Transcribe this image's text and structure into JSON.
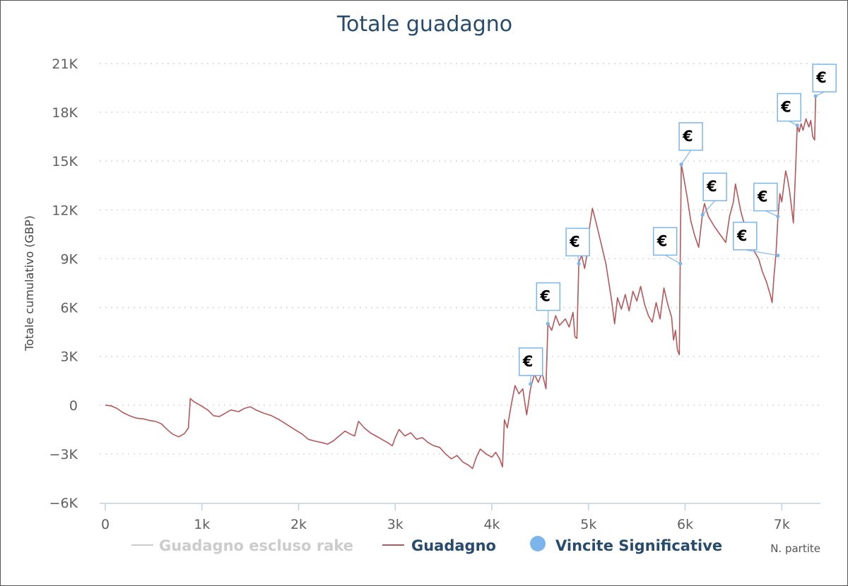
{
  "chart_data": {
    "type": "line",
    "title": "Totale guadagno",
    "xlabel": "N. partite",
    "ylabel": "Totale cumulativo (GBP)",
    "xlim": [
      0,
      7400
    ],
    "ylim": [
      -6000,
      21000
    ],
    "x_ticks": [
      {
        "value": 0,
        "label": "0"
      },
      {
        "value": 1000,
        "label": "1k"
      },
      {
        "value": 2000,
        "label": "2k"
      },
      {
        "value": 3000,
        "label": "3k"
      },
      {
        "value": 4000,
        "label": "4k"
      },
      {
        "value": 5000,
        "label": "5k"
      },
      {
        "value": 6000,
        "label": "6k"
      },
      {
        "value": 7000,
        "label": "7k"
      }
    ],
    "y_ticks": [
      {
        "value": -6000,
        "label": "−6K"
      },
      {
        "value": -3000,
        "label": "−3K"
      },
      {
        "value": 0,
        "label": "0"
      },
      {
        "value": 3000,
        "label": "3K"
      },
      {
        "value": 6000,
        "label": "6K"
      },
      {
        "value": 9000,
        "label": "9K"
      },
      {
        "value": 12000,
        "label": "12K"
      },
      {
        "value": 15000,
        "label": "15K"
      },
      {
        "value": 18000,
        "label": "18K"
      },
      {
        "value": 21000,
        "label": "21K"
      }
    ],
    "grid": {
      "horizontal": true,
      "style": "dotted"
    },
    "legend_position": "bottom",
    "series": [
      {
        "name": "Guadagno escluso rake",
        "color": "#cccccc",
        "hidden": true,
        "points": []
      },
      {
        "name": "Guadagno",
        "color": "#b5585b",
        "points": [
          [
            0,
            0
          ],
          [
            60,
            -50
          ],
          [
            120,
            -200
          ],
          [
            180,
            -450
          ],
          [
            250,
            -650
          ],
          [
            320,
            -800
          ],
          [
            400,
            -850
          ],
          [
            460,
            -950
          ],
          [
            520,
            -1000
          ],
          [
            580,
            -1150
          ],
          [
            640,
            -1500
          ],
          [
            700,
            -1800
          ],
          [
            760,
            -1950
          ],
          [
            820,
            -1750
          ],
          [
            860,
            -1400
          ],
          [
            880,
            400
          ],
          [
            920,
            200
          ],
          [
            980,
            0
          ],
          [
            1060,
            -300
          ],
          [
            1120,
            -650
          ],
          [
            1180,
            -700
          ],
          [
            1240,
            -500
          ],
          [
            1300,
            -300
          ],
          [
            1380,
            -400
          ],
          [
            1440,
            -200
          ],
          [
            1500,
            -100
          ],
          [
            1560,
            -300
          ],
          [
            1640,
            -500
          ],
          [
            1720,
            -650
          ],
          [
            1800,
            -900
          ],
          [
            1880,
            -1200
          ],
          [
            1960,
            -1500
          ],
          [
            2040,
            -1800
          ],
          [
            2100,
            -2100
          ],
          [
            2160,
            -2200
          ],
          [
            2240,
            -2300
          ],
          [
            2300,
            -2400
          ],
          [
            2360,
            -2200
          ],
          [
            2420,
            -1900
          ],
          [
            2480,
            -1600
          ],
          [
            2540,
            -1800
          ],
          [
            2580,
            -1900
          ],
          [
            2620,
            -1000
          ],
          [
            2680,
            -1400
          ],
          [
            2740,
            -1700
          ],
          [
            2800,
            -1900
          ],
          [
            2860,
            -2100
          ],
          [
            2920,
            -2300
          ],
          [
            2970,
            -2500
          ],
          [
            3000,
            -2000
          ],
          [
            3040,
            -1500
          ],
          [
            3100,
            -1900
          ],
          [
            3160,
            -1700
          ],
          [
            3220,
            -2100
          ],
          [
            3280,
            -2000
          ],
          [
            3340,
            -2300
          ],
          [
            3400,
            -2500
          ],
          [
            3460,
            -2600
          ],
          [
            3520,
            -3000
          ],
          [
            3580,
            -3300
          ],
          [
            3640,
            -3100
          ],
          [
            3700,
            -3500
          ],
          [
            3760,
            -3700
          ],
          [
            3800,
            -3900
          ],
          [
            3840,
            -3200
          ],
          [
            3880,
            -2700
          ],
          [
            3940,
            -3000
          ],
          [
            4000,
            -3200
          ],
          [
            4040,
            -2900
          ],
          [
            4080,
            -3300
          ],
          [
            4110,
            -3800
          ],
          [
            4130,
            -900
          ],
          [
            4160,
            -1400
          ],
          [
            4200,
            0
          ],
          [
            4240,
            1200
          ],
          [
            4280,
            700
          ],
          [
            4320,
            1000
          ],
          [
            4360,
            -600
          ],
          [
            4400,
            1000
          ],
          [
            4440,
            1900
          ],
          [
            4480,
            1400
          ],
          [
            4520,
            2000
          ],
          [
            4560,
            1000
          ],
          [
            4580,
            5000
          ],
          [
            4620,
            4600
          ],
          [
            4660,
            5500
          ],
          [
            4700,
            4900
          ],
          [
            4760,
            5300
          ],
          [
            4800,
            4800
          ],
          [
            4840,
            5700
          ],
          [
            4860,
            4200
          ],
          [
            4880,
            4100
          ],
          [
            4900,
            8800
          ],
          [
            4930,
            9200
          ],
          [
            4960,
            8400
          ],
          [
            4980,
            9100
          ],
          [
            5000,
            10500
          ],
          [
            5040,
            12100
          ],
          [
            5080,
            11200
          ],
          [
            5120,
            10200
          ],
          [
            5180,
            8700
          ],
          [
            5240,
            6400
          ],
          [
            5270,
            5000
          ],
          [
            5300,
            6600
          ],
          [
            5340,
            5900
          ],
          [
            5380,
            6800
          ],
          [
            5420,
            5800
          ],
          [
            5460,
            7000
          ],
          [
            5500,
            6400
          ],
          [
            5540,
            7300
          ],
          [
            5580,
            6200
          ],
          [
            5620,
            5500
          ],
          [
            5660,
            5100
          ],
          [
            5700,
            6300
          ],
          [
            5740,
            5300
          ],
          [
            5780,
            7200
          ],
          [
            5820,
            6200
          ],
          [
            5860,
            5400
          ],
          [
            5880,
            4000
          ],
          [
            5900,
            4600
          ],
          [
            5920,
            3400
          ],
          [
            5940,
            3100
          ],
          [
            5950,
            9400
          ],
          [
            5960,
            14800
          ],
          [
            5980,
            14200
          ],
          [
            6020,
            12800
          ],
          [
            6060,
            11300
          ],
          [
            6100,
            10400
          ],
          [
            6140,
            9700
          ],
          [
            6180,
            11800
          ],
          [
            6200,
            12400
          ],
          [
            6240,
            11600
          ],
          [
            6300,
            11000
          ],
          [
            6360,
            10500
          ],
          [
            6420,
            10000
          ],
          [
            6460,
            11600
          ],
          [
            6500,
            12500
          ],
          [
            6520,
            13600
          ],
          [
            6540,
            13000
          ],
          [
            6580,
            11800
          ],
          [
            6640,
            10600
          ],
          [
            6680,
            10200
          ],
          [
            6720,
            9400
          ],
          [
            6760,
            9000
          ],
          [
            6800,
            8200
          ],
          [
            6840,
            7600
          ],
          [
            6880,
            6800
          ],
          [
            6900,
            6300
          ],
          [
            6920,
            8000
          ],
          [
            6940,
            9300
          ],
          [
            6960,
            11500
          ],
          [
            6980,
            13000
          ],
          [
            7000,
            12500
          ],
          [
            7040,
            14400
          ],
          [
            7060,
            13900
          ],
          [
            7080,
            13200
          ],
          [
            7100,
            12200
          ],
          [
            7120,
            11200
          ],
          [
            7140,
            14000
          ],
          [
            7160,
            17200
          ],
          [
            7180,
            16800
          ],
          [
            7200,
            17300
          ],
          [
            7220,
            16900
          ],
          [
            7250,
            17600
          ],
          [
            7280,
            17100
          ],
          [
            7300,
            17500
          ],
          [
            7320,
            16500
          ],
          [
            7340,
            16300
          ],
          [
            7350,
            19000
          ]
        ]
      },
      {
        "name": "Vincite Significative",
        "color": "#7cb5ec",
        "marker": "€",
        "points": [
          [
            4400,
            1300
          ],
          [
            4580,
            5000
          ],
          [
            4900,
            8700
          ],
          [
            5950,
            8700
          ],
          [
            5960,
            14800
          ],
          [
            6180,
            11700
          ],
          [
            6960,
            9200
          ],
          [
            6960,
            11600
          ],
          [
            7160,
            17200
          ],
          [
            7350,
            19000
          ]
        ]
      }
    ]
  }
}
